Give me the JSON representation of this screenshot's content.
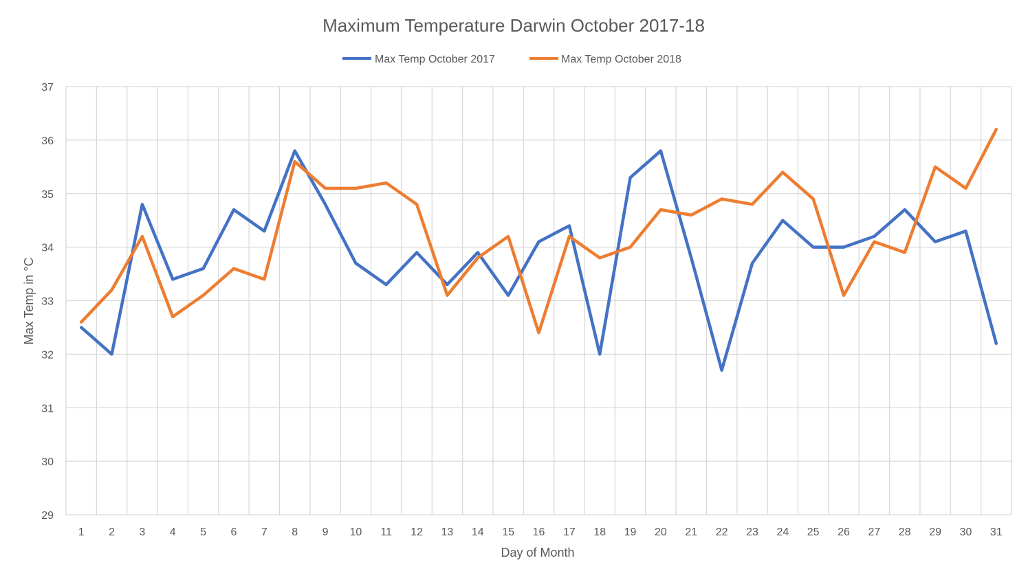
{
  "chart_data": {
    "type": "line",
    "title": "Maximum Temperature  Darwin October 2017-18",
    "xlabel": "Day of Month",
    "ylabel": "Max Temp in °C",
    "ylim": [
      29,
      37
    ],
    "yticks": [
      "29",
      "30",
      "31",
      "32",
      "33",
      "34",
      "35",
      "36",
      "37"
    ],
    "grid": true,
    "legend_position": "top",
    "categories": [
      "1",
      "2",
      "3",
      "4",
      "5",
      "6",
      "7",
      "8",
      "9",
      "10",
      "11",
      "12",
      "13",
      "14",
      "15",
      "16",
      "17",
      "18",
      "19",
      "20",
      "21",
      "22",
      "23",
      "24",
      "25",
      "26",
      "27",
      "28",
      "29",
      "30",
      "31"
    ],
    "series": [
      {
        "name": "Max Temp October 2017",
        "color": "#4472C4",
        "values": [
          32.5,
          32.0,
          34.8,
          33.4,
          33.6,
          34.7,
          34.3,
          35.8,
          34.8,
          33.7,
          33.3,
          33.9,
          33.3,
          33.9,
          33.1,
          34.1,
          34.4,
          32.0,
          35.3,
          35.8,
          33.8,
          31.7,
          33.7,
          34.5,
          34.0,
          34.0,
          34.2,
          34.7,
          34.1,
          34.3,
          32.2
        ]
      },
      {
        "name": "Max Temp October 2018",
        "color": "#ED7D31",
        "values": [
          32.6,
          33.2,
          34.2,
          32.7,
          33.1,
          33.6,
          33.4,
          35.6,
          35.1,
          35.1,
          35.2,
          34.8,
          33.1,
          33.8,
          34.2,
          32.4,
          34.2,
          33.8,
          34.0,
          34.7,
          34.6,
          34.9,
          34.8,
          35.4,
          34.9,
          33.1,
          34.1,
          33.9,
          35.5,
          35.1,
          36.2
        ]
      }
    ]
  }
}
